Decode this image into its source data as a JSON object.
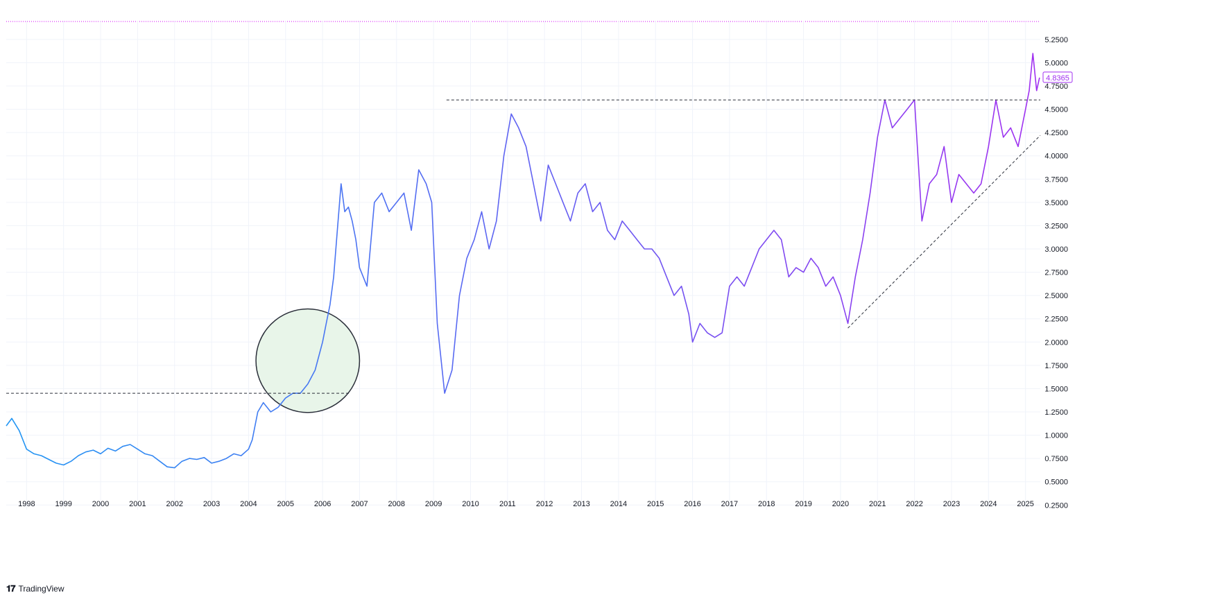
{
  "chart_data": {
    "type": "line",
    "title": "",
    "xlabel": "",
    "ylabel": "",
    "ylim": [
      0.2,
      5.45
    ],
    "xlim": [
      1997.45,
      2025.4
    ],
    "grid": true,
    "legend": "none",
    "y_ticks": [
      "0.2500",
      "0.5000",
      "0.7500",
      "1.0000",
      "1.2500",
      "1.5000",
      "1.7500",
      "2.0000",
      "2.2500",
      "2.5000",
      "2.7500",
      "3.0000",
      "3.2500",
      "3.5000",
      "3.7500",
      "4.0000",
      "4.2500",
      "4.5000",
      "4.7500",
      "5.0000",
      "5.2500"
    ],
    "x_ticks": [
      "1998",
      "1999",
      "2000",
      "2001",
      "2002",
      "2003",
      "2004",
      "2005",
      "2006",
      "2007",
      "2008",
      "2009",
      "2010",
      "2011",
      "2012",
      "2013",
      "2014",
      "2015",
      "2016",
      "2017",
      "2018",
      "2019",
      "2020",
      "2021",
      "2022",
      "2023",
      "2024",
      "2025"
    ],
    "last_price_label": "4.8365",
    "colors": {
      "line_start": "#2196f3",
      "line_end": "#a02ff0",
      "grid": "#f0f3fa",
      "axis_text": "#131722",
      "top_dotted_line": "#d500f9",
      "circle_fill": "#e8f5e9",
      "circle_stroke": "#2a2e39",
      "trend_lines": "#2a2e39"
    },
    "series": [
      {
        "x": [
          1997.45,
          1997.6,
          1997.8,
          1998.0,
          1998.2,
          1998.4,
          1998.6,
          1998.8,
          1999.0,
          1999.2,
          1999.4,
          1999.6,
          1999.8,
          2000.0,
          2000.2,
          2000.4,
          2000.6,
          2000.8,
          2001.0,
          2001.2,
          2001.4,
          2001.6,
          2001.8,
          2002.0,
          2002.2,
          2002.4,
          2002.6,
          2002.8,
          2003.0,
          2003.2,
          2003.4,
          2003.6,
          2003.8,
          2004.0,
          2004.1,
          2004.25,
          2004.4,
          2004.6,
          2004.8,
          2005.0,
          2005.2,
          2005.4,
          2005.6,
          2005.8,
          2006.0,
          2006.1,
          2006.2,
          2006.3,
          2006.4,
          2006.5,
          2006.6,
          2006.7,
          2006.8,
          2006.9,
          2007.0,
          2007.2,
          2007.4,
          2007.6,
          2007.8,
          2008.0,
          2008.2,
          2008.4,
          2008.6,
          2008.8,
          2008.95,
          2009.1,
          2009.3,
          2009.5,
          2009.7,
          2009.9,
          2010.1,
          2010.3,
          2010.5,
          2010.7,
          2010.9,
          2011.1,
          2011.3,
          2011.5,
          2011.7,
          2011.9,
          2012.1,
          2012.3,
          2012.5,
          2012.7,
          2012.9,
          2013.1,
          2013.3,
          2013.5,
          2013.7,
          2013.9,
          2014.1,
          2014.3,
          2014.5,
          2014.7,
          2014.9,
          2015.1,
          2015.3,
          2015.5,
          2015.7,
          2015.9,
          2016.0,
          2016.2,
          2016.4,
          2016.6,
          2016.8,
          2017.0,
          2017.2,
          2017.4,
          2017.6,
          2017.8,
          2018.0,
          2018.2,
          2018.4,
          2018.6,
          2018.8,
          2019.0,
          2019.2,
          2019.4,
          2019.6,
          2019.8,
          2020.0,
          2020.2,
          2020.4,
          2020.6,
          2020.8,
          2021.0,
          2021.2,
          2021.4,
          2021.6,
          2021.8,
          2022.0,
          2022.2,
          2022.4,
          2022.6,
          2022.8,
          2023.0,
          2023.2,
          2023.4,
          2023.6,
          2023.8,
          2024.0,
          2024.2,
          2024.4,
          2024.6,
          2024.8,
          2025.0,
          2025.1,
          2025.2,
          2025.3,
          2025.38
        ],
        "y": [
          1.1,
          1.18,
          1.05,
          0.85,
          0.8,
          0.78,
          0.74,
          0.7,
          0.68,
          0.72,
          0.78,
          0.82,
          0.84,
          0.8,
          0.86,
          0.83,
          0.88,
          0.9,
          0.85,
          0.8,
          0.78,
          0.72,
          0.66,
          0.65,
          0.72,
          0.75,
          0.74,
          0.76,
          0.7,
          0.72,
          0.75,
          0.8,
          0.78,
          0.85,
          0.95,
          1.25,
          1.35,
          1.25,
          1.3,
          1.4,
          1.45,
          1.45,
          1.55,
          1.7,
          2.0,
          2.2,
          2.4,
          2.7,
          3.2,
          3.7,
          3.4,
          3.45,
          3.3,
          3.1,
          2.8,
          2.6,
          3.5,
          3.6,
          3.4,
          3.5,
          3.6,
          3.2,
          3.85,
          3.7,
          3.5,
          2.2,
          1.45,
          1.7,
          2.5,
          2.9,
          3.1,
          3.4,
          3.0,
          3.3,
          4.0,
          4.45,
          4.3,
          4.1,
          3.7,
          3.3,
          3.9,
          3.7,
          3.5,
          3.3,
          3.6,
          3.7,
          3.4,
          3.5,
          3.2,
          3.1,
          3.3,
          3.2,
          3.1,
          3.0,
          3.0,
          2.9,
          2.7,
          2.5,
          2.6,
          2.3,
          2.0,
          2.2,
          2.1,
          2.05,
          2.1,
          2.6,
          2.7,
          2.6,
          2.8,
          3.0,
          3.1,
          3.2,
          3.1,
          2.7,
          2.8,
          2.75,
          2.9,
          2.8,
          2.6,
          2.7,
          2.5,
          2.2,
          2.7,
          3.1,
          3.6,
          4.2,
          4.6,
          4.3,
          4.4,
          4.5,
          4.6,
          3.3,
          3.7,
          3.8,
          4.1,
          3.5,
          3.8,
          3.7,
          3.6,
          3.7,
          4.1,
          4.6,
          4.2,
          4.3,
          4.1,
          4.5,
          4.7,
          5.1,
          4.7,
          4.84
        ]
      }
    ],
    "annotations": [
      {
        "kind": "horizontal-dashed",
        "y": 1.45,
        "x_start": 1997.45,
        "x_end": 2006.75
      },
      {
        "kind": "horizontal-dashed",
        "y": 4.6,
        "x_start": 2009.35,
        "x_end": 2025.4
      },
      {
        "kind": "trend-dashed",
        "x1": 2020.2,
        "y1": 2.15,
        "x2": 2025.4,
        "y2": 4.22
      },
      {
        "kind": "circle",
        "cx": 2005.6,
        "cy": 1.8,
        "r_years": 1.4
      }
    ]
  },
  "branding": {
    "name": "TradingView"
  }
}
